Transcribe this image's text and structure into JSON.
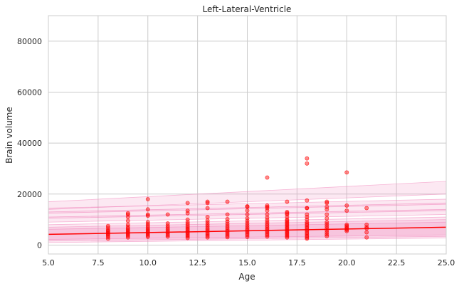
{
  "chart_data": {
    "type": "scatter",
    "title": "Left-Lateral-Ventricle",
    "xlabel": "Age",
    "ylabel": "Brain volume",
    "xlim": [
      5.0,
      25.0
    ],
    "ylim": [
      -3500,
      90000
    ],
    "xticks": [
      5.0,
      7.5,
      10.0,
      12.5,
      15.0,
      17.5,
      20.0,
      22.5,
      25.0
    ],
    "xtick_labels": [
      "5.0",
      "7.5",
      "10.0",
      "12.5",
      "15.0",
      "17.5",
      "20.0",
      "22.5",
      "25.0"
    ],
    "yticks": [
      0,
      20000,
      40000,
      60000,
      80000
    ],
    "ytick_labels": [
      "0",
      "20000",
      "40000",
      "60000",
      "80000"
    ],
    "grid": true,
    "colors": {
      "points": "#ff0000",
      "trend": "#ff0000",
      "band": "#f080b8",
      "gridline": "#cccccc",
      "frame": "#cccccc"
    },
    "trend_line": {
      "x": [
        5,
        25
      ],
      "y": [
        4200,
        7000
      ]
    },
    "centile_bands": [
      {
        "x": [
          5,
          25
        ],
        "lower": [
          1000,
          2800
        ],
        "upper": [
          8000,
          11000
        ]
      },
      {
        "x": [
          5,
          25
        ],
        "lower": [
          1600,
          3400
        ],
        "upper": [
          7000,
          10000
        ]
      },
      {
        "x": [
          5,
          25
        ],
        "lower": [
          2200,
          4000
        ],
        "upper": [
          6200,
          9000
        ]
      },
      {
        "x": [
          5,
          25
        ],
        "lower": [
          9000,
          12000
        ],
        "upper": [
          11000,
          14000
        ]
      },
      {
        "x": [
          5,
          25
        ],
        "lower": [
          10500,
          13500
        ],
        "upper": [
          13000,
          16500
        ]
      },
      {
        "x": [
          5,
          25
        ],
        "lower": [
          12500,
          16000
        ],
        "upper": [
          14500,
          18000
        ]
      },
      {
        "x": [
          5,
          25
        ],
        "lower": [
          14000,
          20000
        ],
        "upper": [
          17000,
          25000
        ]
      }
    ],
    "series": [
      {
        "x": [
          8,
          8,
          8,
          8,
          8,
          8,
          8,
          8,
          8,
          8,
          9,
          9,
          9,
          9,
          9,
          9,
          9,
          9,
          9,
          9,
          9,
          9,
          9,
          9,
          10,
          10,
          10,
          10,
          10,
          10,
          10,
          10,
          10,
          10,
          10,
          10,
          10,
          10,
          10,
          11,
          11,
          11,
          11,
          11,
          11,
          11,
          11,
          11,
          11,
          12,
          12,
          12,
          12,
          12,
          12,
          12,
          12,
          12,
          12,
          12,
          12,
          12,
          12,
          12,
          12,
          13,
          13,
          13,
          13,
          13,
          13,
          13,
          13,
          13,
          13,
          13,
          13,
          13,
          13,
          13,
          14,
          14,
          14,
          14,
          14,
          14,
          14,
          14,
          14,
          14,
          14,
          14,
          14,
          15,
          15,
          15,
          15,
          15,
          15,
          15,
          15,
          15,
          15,
          15,
          15,
          15,
          15,
          15,
          16,
          16,
          16,
          16,
          16,
          16,
          16,
          16,
          16,
          16,
          16,
          16,
          16,
          16,
          16,
          16,
          16,
          16,
          17,
          17,
          17,
          17,
          17,
          17,
          17,
          17,
          17,
          17,
          17,
          17,
          17,
          17,
          17,
          17,
          17,
          17,
          17,
          17,
          18,
          18,
          18,
          18,
          18,
          18,
          18,
          18,
          18,
          18,
          18,
          18,
          18,
          18,
          18,
          18,
          18,
          18,
          18,
          18,
          19,
          19,
          19,
          19,
          19,
          19,
          19,
          19,
          19,
          19,
          19,
          19,
          19,
          19,
          20,
          20,
          20,
          20,
          20,
          20,
          20,
          20,
          20,
          21,
          21,
          21,
          21,
          21,
          21
        ],
        "y": [
          2500,
          3200,
          3800,
          4200,
          4700,
          5100,
          5600,
          6000,
          6800,
          7500,
          3000,
          3600,
          4100,
          4600,
          5000,
          5500,
          6000,
          6500,
          7200,
          8000,
          9500,
          11000,
          12000,
          12500,
          3200,
          3800,
          4300,
          4800,
          5200,
          5700,
          6200,
          6800,
          7500,
          8200,
          9000,
          11500,
          12000,
          14000,
          18000,
          3300,
          3900,
          4500,
          5000,
          5600,
          6200,
          6900,
          7600,
          8500,
          12000,
          2800,
          3400,
          3900,
          4400,
          4900,
          5400,
          5900,
          6400,
          7000,
          7600,
          8300,
          9000,
          10000,
          12500,
          13500,
          16500,
          3000,
          3600,
          4200,
          4800,
          5400,
          6000,
          6600,
          7300,
          8000,
          8800,
          9600,
          11000,
          14500,
          16500,
          17000,
          3100,
          3700,
          4300,
          4900,
          5500,
          6100,
          6800,
          7500,
          8300,
          9200,
          10200,
          12000,
          17000,
          3200,
          3900,
          4500,
          5100,
          5700,
          6300,
          7000,
          7800,
          8600,
          9500,
          10500,
          12000,
          13500,
          15000,
          15200,
          3300,
          3900,
          4500,
          5100,
          5700,
          6300,
          6900,
          7600,
          8300,
          9000,
          9800,
          10800,
          12000,
          13500,
          14500,
          15000,
          15500,
          26500,
          3000,
          3500,
          4000,
          4500,
          5000,
          5500,
          6000,
          6500,
          7000,
          7500,
          8000,
          8500,
          9000,
          9500,
          10000,
          11000,
          12000,
          12500,
          13000,
          17000,
          2500,
          3000,
          3600,
          4200,
          4800,
          5400,
          6000,
          6600,
          7200,
          7800,
          8400,
          9000,
          10000,
          11000,
          12000,
          14500,
          17500,
          32000,
          34000,
          14500,
          3500,
          4200,
          5000,
          5800,
          6600,
          7400,
          8200,
          9000,
          10500,
          12000,
          14000,
          15000,
          16500,
          17000,
          5500,
          6000,
          6500,
          7000,
          7500,
          8000,
          13500,
          15500,
          28500,
          3000,
          5000,
          6500,
          7000,
          8000,
          14500
        ]
      }
    ]
  }
}
